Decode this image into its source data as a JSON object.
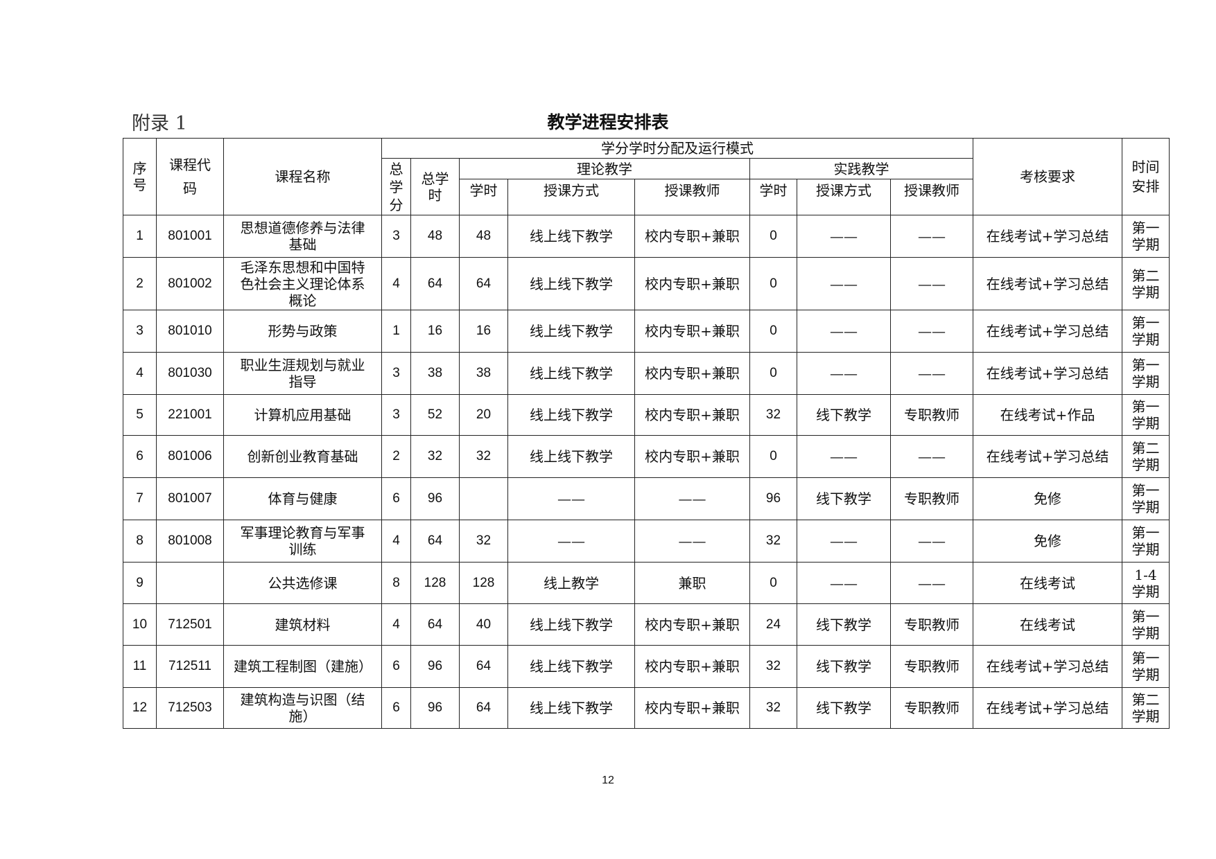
{
  "appendix_label": "附录 1",
  "title": "教学进程安排表",
  "headers": {
    "seq": "序号",
    "code": "课程代码",
    "name": "课程名称",
    "group": "学分学时分配及运行模式",
    "credits": "总学分",
    "total_hours": "总学时",
    "theory": "理论教学",
    "practice": "实践教学",
    "hours": "学时",
    "method": "授课方式",
    "teacher": "授课教师",
    "assessment": "考核要求",
    "schedule": "时间安排"
  },
  "rows": [
    {
      "seq": "1",
      "code": "801001",
      "name": "思想道德修养与法律基础",
      "credits": "3",
      "total": "48",
      "t_hours": "48",
      "t_method": "线上线下教学",
      "t_teacher": "校内专职+兼职",
      "p_hours": "0",
      "p_method": "——",
      "p_teacher": "——",
      "assess": "在线考试+学习总结",
      "time": "第一学期"
    },
    {
      "seq": "2",
      "code": "801002",
      "name": "毛泽东思想和中国特色社会主义理论体系概论",
      "credits": "4",
      "total": "64",
      "t_hours": "64",
      "t_method": "线上线下教学",
      "t_teacher": "校内专职+兼职",
      "p_hours": "0",
      "p_method": "——",
      "p_teacher": "——",
      "assess": "在线考试+学习总结",
      "time": "第二学期"
    },
    {
      "seq": "3",
      "code": "801010",
      "name": "形势与政策",
      "credits": "1",
      "total": "16",
      "t_hours": "16",
      "t_method": "线上线下教学",
      "t_teacher": "校内专职+兼职",
      "p_hours": "0",
      "p_method": "——",
      "p_teacher": "——",
      "assess": "在线考试+学习总结",
      "time": "第一学期"
    },
    {
      "seq": "4",
      "code": "801030",
      "name": "职业生涯规划与就业指导",
      "credits": "3",
      "total": "38",
      "t_hours": "38",
      "t_method": "线上线下教学",
      "t_teacher": "校内专职+兼职",
      "p_hours": "0",
      "p_method": "——",
      "p_teacher": "——",
      "assess": "在线考试+学习总结",
      "time": "第一学期"
    },
    {
      "seq": "5",
      "code": "221001",
      "name": "计算机应用基础",
      "credits": "3",
      "total": "52",
      "t_hours": "20",
      "t_method": "线上线下教学",
      "t_teacher": "校内专职+兼职",
      "p_hours": "32",
      "p_method": "线下教学",
      "p_teacher": "专职教师",
      "assess": "在线考试+作品",
      "time": "第一学期"
    },
    {
      "seq": "6",
      "code": "801006",
      "name": "创新创业教育基础",
      "credits": "2",
      "total": "32",
      "t_hours": "32",
      "t_method": "线上线下教学",
      "t_teacher": "校内专职+兼职",
      "p_hours": "0",
      "p_method": "——",
      "p_teacher": "——",
      "assess": "在线考试+学习总结",
      "time": "第二学期"
    },
    {
      "seq": "7",
      "code": "801007",
      "name": "体育与健康",
      "credits": "6",
      "total": "96",
      "t_hours": "",
      "t_method": "——",
      "t_teacher": "——",
      "p_hours": "96",
      "p_method": "线下教学",
      "p_teacher": "专职教师",
      "assess": "免修",
      "time": "第一学期"
    },
    {
      "seq": "8",
      "code": "801008",
      "name": "军事理论教育与军事训练",
      "credits": "4",
      "total": "64",
      "t_hours": "32",
      "t_method": "——",
      "t_teacher": "——",
      "p_hours": "32",
      "p_method": "——",
      "p_teacher": "——",
      "assess": "免修",
      "time": "第一学期"
    },
    {
      "seq": "9",
      "code": "",
      "name": "公共选修课",
      "credits": "8",
      "total": "128",
      "t_hours": "128",
      "t_method": "线上教学",
      "t_teacher": "兼职",
      "p_hours": "0",
      "p_method": "——",
      "p_teacher": "——",
      "assess": "在线考试",
      "time": "1-4 学期"
    },
    {
      "seq": "10",
      "code": "712501",
      "name": "建筑材料",
      "credits": "4",
      "total": "64",
      "t_hours": "40",
      "t_method": "线上线下教学",
      "t_teacher": "校内专职+兼职",
      "p_hours": "24",
      "p_method": "线下教学",
      "p_teacher": "专职教师",
      "assess": "在线考试",
      "time": "第一学期"
    },
    {
      "seq": "11",
      "code": "712511",
      "name": "建筑工程制图（建施）",
      "credits": "6",
      "total": "96",
      "t_hours": "64",
      "t_method": "线上线下教学",
      "t_teacher": "校内专职+兼职",
      "p_hours": "32",
      "p_method": "线下教学",
      "p_teacher": "专职教师",
      "assess": "在线考试+学习总结",
      "time": "第一学期"
    },
    {
      "seq": "12",
      "code": "712503",
      "name": "建筑构造与识图（结施）",
      "credits": "6",
      "total": "96",
      "t_hours": "64",
      "t_method": "线上线下教学",
      "t_teacher": "校内专职+兼职",
      "p_hours": "32",
      "p_method": "线下教学",
      "p_teacher": "专职教师",
      "assess": "在线考试+学习总结",
      "time": "第二学期"
    }
  ],
  "page_number": "12"
}
